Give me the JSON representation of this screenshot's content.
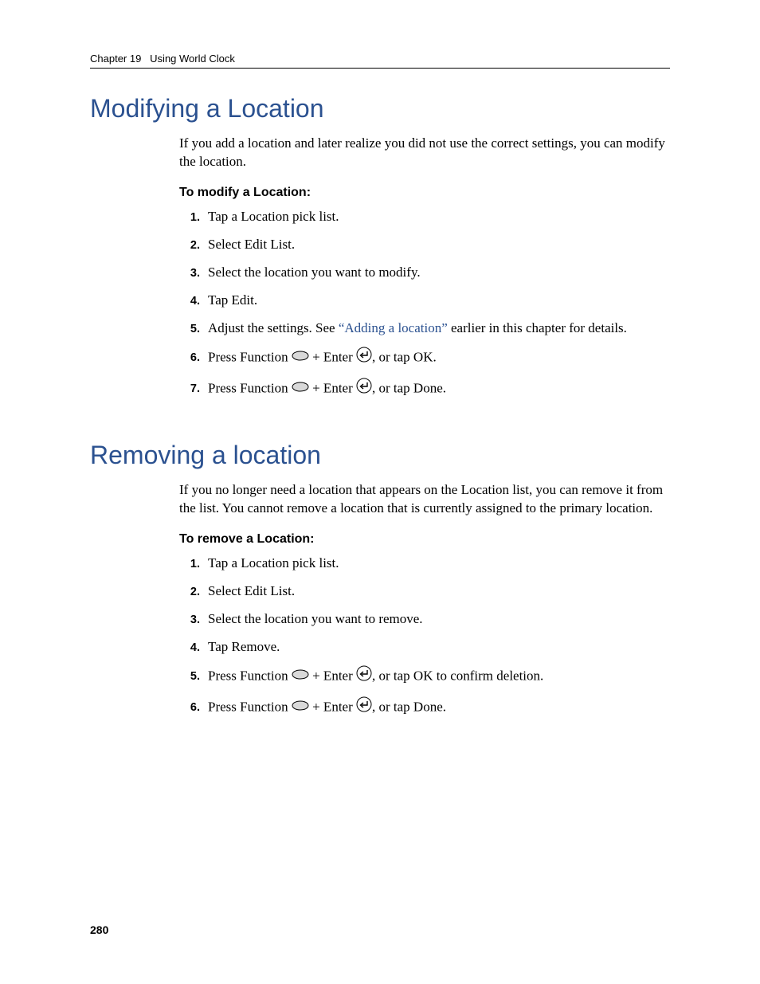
{
  "header": {
    "chapter_label": "Chapter 19",
    "chapter_title": "Using World Clock"
  },
  "sections": [
    {
      "heading": "Modifying a Location",
      "intro": "If you add a location and later realize you did not use the correct settings, you can modify the location.",
      "subhead": "To modify a Location:",
      "steps": [
        {
          "n": "1.",
          "parts": [
            {
              "t": "text",
              "v": "Tap a Location pick list."
            }
          ]
        },
        {
          "n": "2.",
          "parts": [
            {
              "t": "text",
              "v": "Select Edit List."
            }
          ]
        },
        {
          "n": "3.",
          "parts": [
            {
              "t": "text",
              "v": "Select the location you want to modify."
            }
          ]
        },
        {
          "n": "4.",
          "parts": [
            {
              "t": "text",
              "v": "Tap Edit."
            }
          ]
        },
        {
          "n": "5.",
          "parts": [
            {
              "t": "text",
              "v": "Adjust the settings. See "
            },
            {
              "t": "link",
              "v": "“Adding a location”"
            },
            {
              "t": "text",
              "v": " earlier in this chapter for details."
            }
          ]
        },
        {
          "n": "6.",
          "parts": [
            {
              "t": "text",
              "v": "Press Function "
            },
            {
              "t": "icon",
              "v": "oval"
            },
            {
              "t": "text",
              "v": " + Enter "
            },
            {
              "t": "icon",
              "v": "enter"
            },
            {
              "t": "text",
              "v": ", or tap OK."
            }
          ]
        },
        {
          "n": "7.",
          "parts": [
            {
              "t": "text",
              "v": "Press Function "
            },
            {
              "t": "icon",
              "v": "oval"
            },
            {
              "t": "text",
              "v": " + Enter "
            },
            {
              "t": "icon",
              "v": "enter"
            },
            {
              "t": "text",
              "v": ", or tap Done."
            }
          ]
        }
      ]
    },
    {
      "heading": "Removing a location",
      "intro": "If you no longer need a location that appears on the Location list, you can remove it from the list. You cannot remove a location that is currently assigned to the primary location.",
      "subhead": "To remove a Location:",
      "steps": [
        {
          "n": "1.",
          "parts": [
            {
              "t": "text",
              "v": "Tap a Location pick list."
            }
          ]
        },
        {
          "n": "2.",
          "parts": [
            {
              "t": "text",
              "v": "Select Edit List."
            }
          ]
        },
        {
          "n": "3.",
          "parts": [
            {
              "t": "text",
              "v": "Select the location you want to remove."
            }
          ]
        },
        {
          "n": "4.",
          "parts": [
            {
              "t": "text",
              "v": "Tap Remove."
            }
          ]
        },
        {
          "n": "5.",
          "parts": [
            {
              "t": "text",
              "v": "Press Function "
            },
            {
              "t": "icon",
              "v": "oval"
            },
            {
              "t": "text",
              "v": " + Enter "
            },
            {
              "t": "icon",
              "v": "enter"
            },
            {
              "t": "text",
              "v": ", or tap OK to confirm deletion."
            }
          ]
        },
        {
          "n": "6.",
          "parts": [
            {
              "t": "text",
              "v": "Press Function "
            },
            {
              "t": "icon",
              "v": "oval"
            },
            {
              "t": "text",
              "v": " + Enter "
            },
            {
              "t": "icon",
              "v": "enter"
            },
            {
              "t": "text",
              "v": ", or tap Done."
            }
          ]
        }
      ]
    }
  ],
  "page_number": "280",
  "colors": {
    "heading": "#2b5190",
    "link": "#2b5190",
    "text": "#000000",
    "rule": "#000000"
  },
  "icons": {
    "oval": {
      "w": 22,
      "h": 11,
      "stroke": "#000000",
      "fill": "#d9d9d9"
    },
    "enter": {
      "r": 9,
      "stroke": "#000000",
      "fill": "#ffffff"
    }
  }
}
